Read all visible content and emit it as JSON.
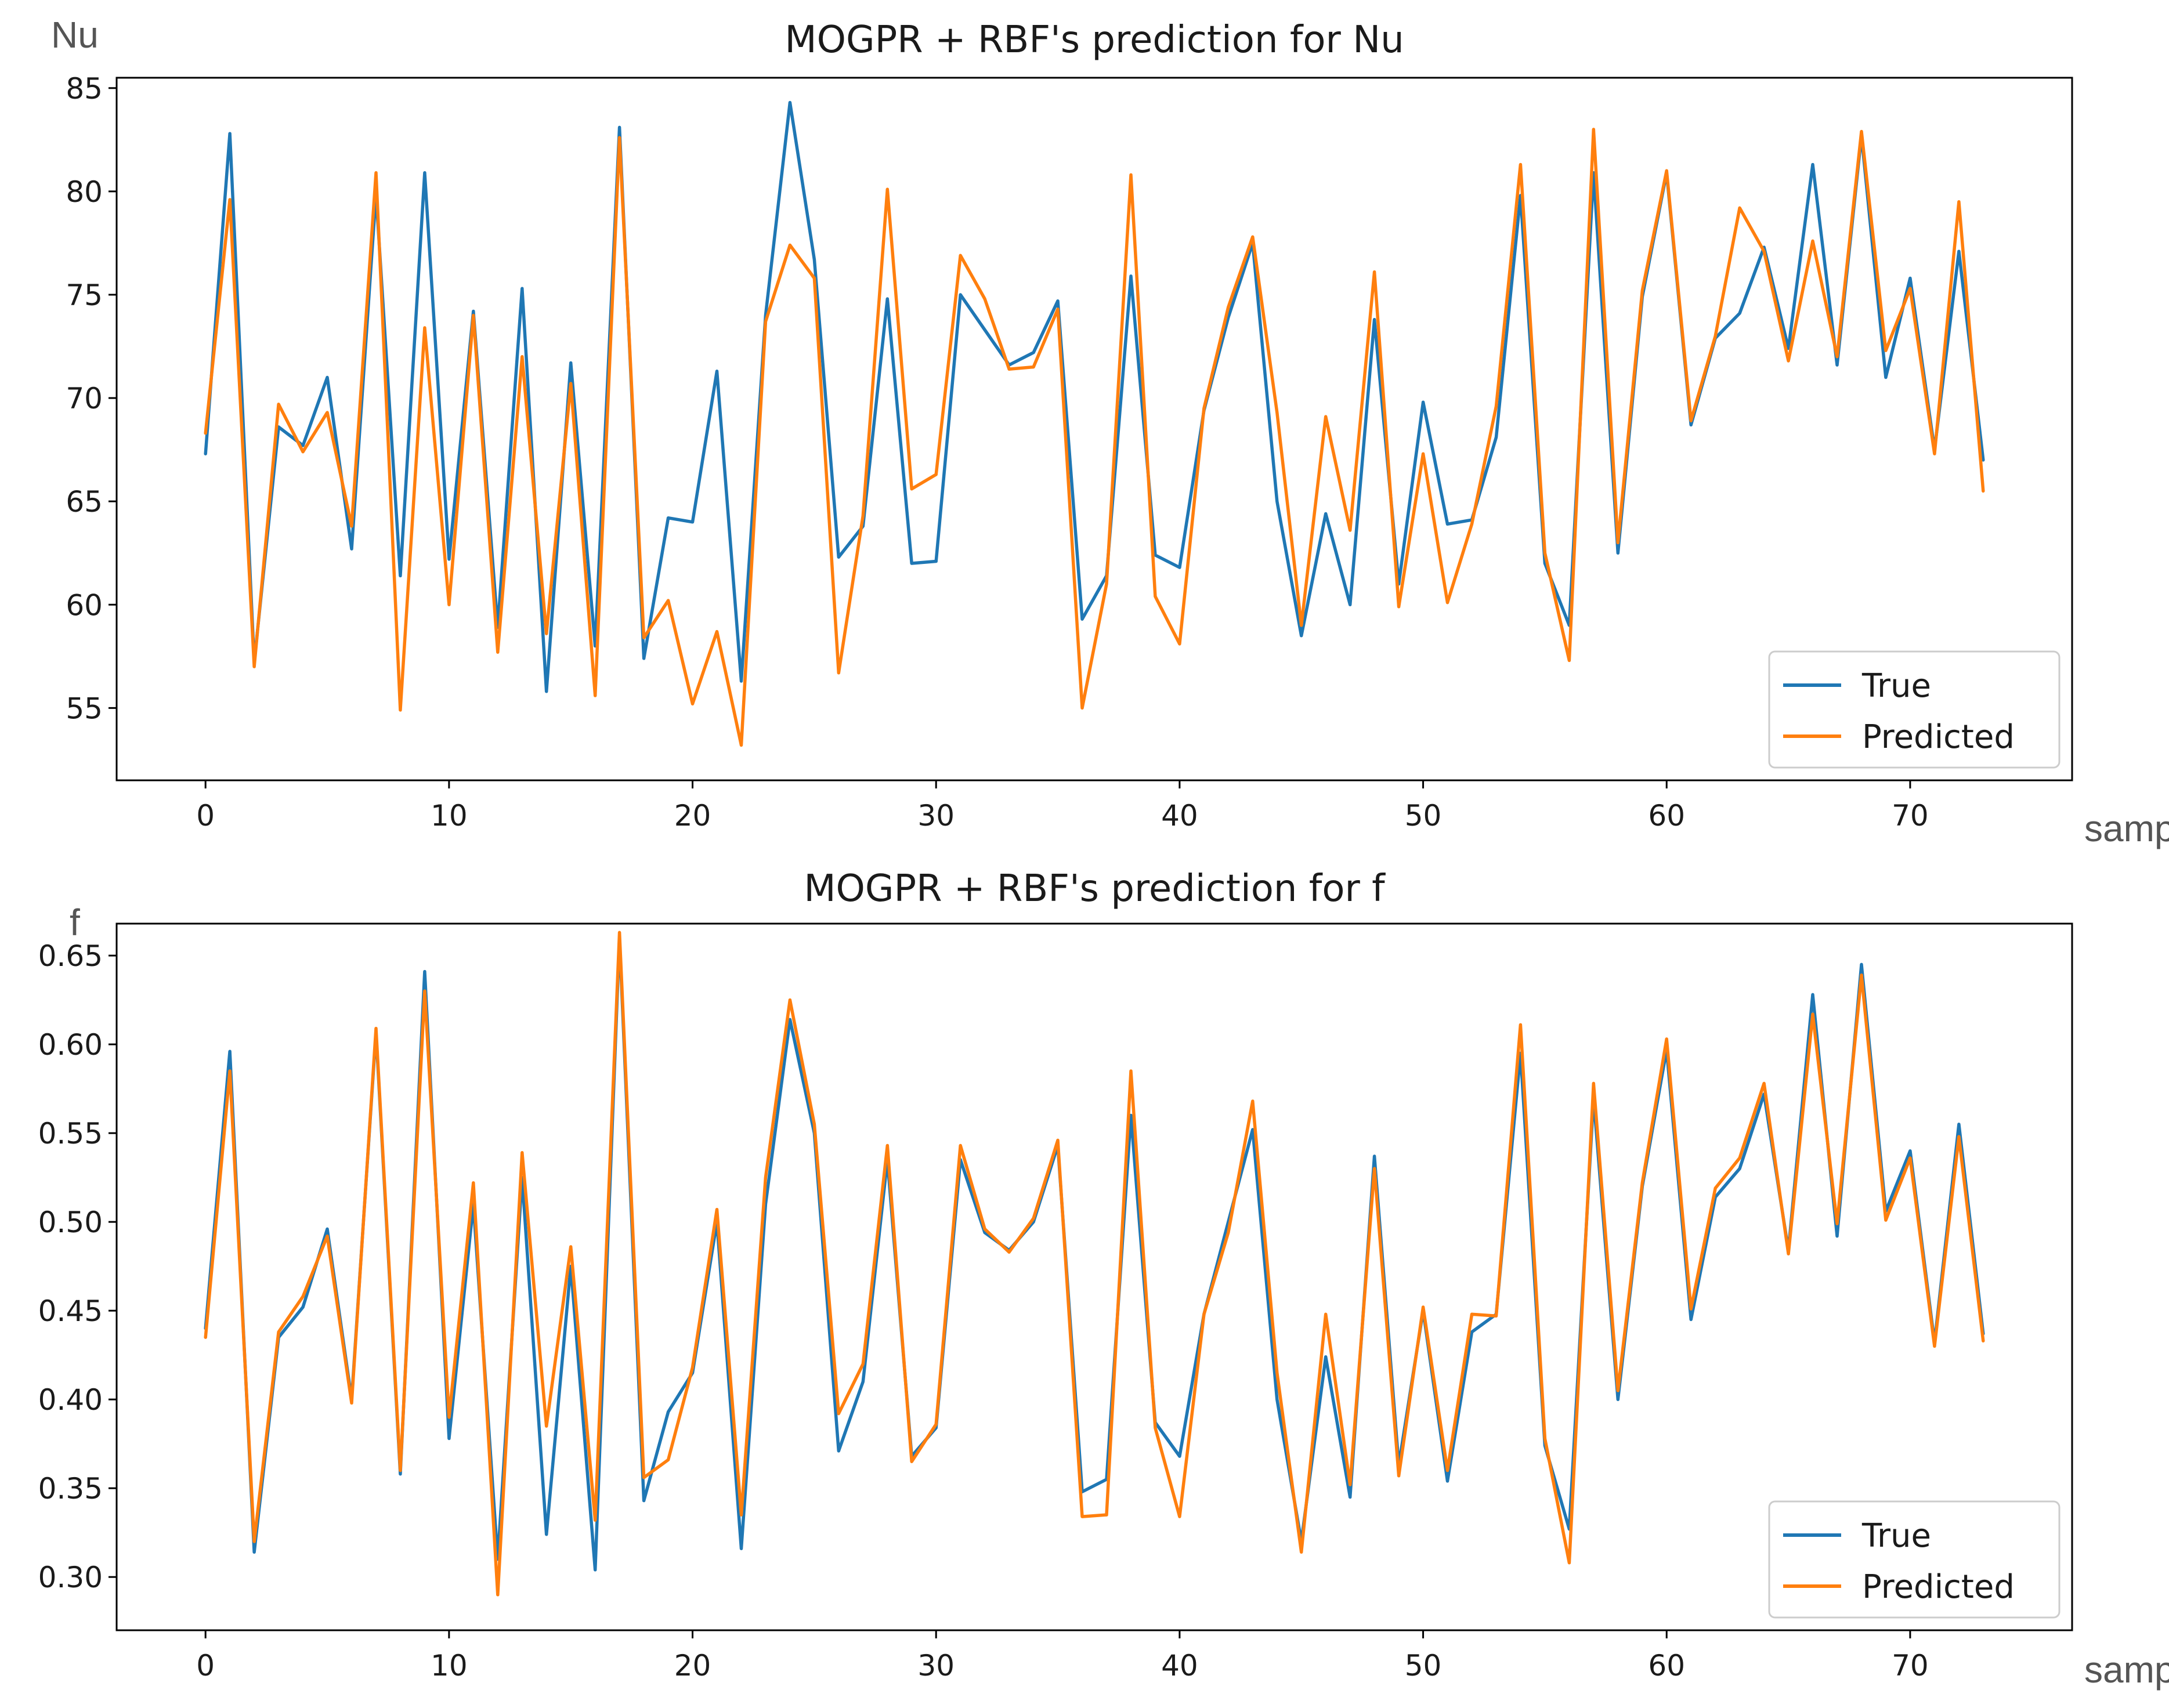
{
  "chart_data": [
    {
      "type": "line",
      "title": "MOGPR + RBF's prediction for Nu",
      "xlabel": "sample",
      "ylabel": "Nu",
      "xlim": [
        -3.65,
        76.65
      ],
      "ylim": [
        51.5,
        85.5
      ],
      "xticks": [
        0,
        10,
        20,
        30,
        40,
        50,
        60,
        70
      ],
      "yticks": [
        55,
        60,
        65,
        70,
        75,
        80,
        85
      ],
      "tick_labels_y": [
        "55",
        "60",
        "65",
        "70",
        "75",
        "80",
        "85"
      ],
      "tick_labels_x": [
        "0",
        "10",
        "20",
        "30",
        "40",
        "50",
        "60",
        "70"
      ],
      "legend": "lower-right",
      "series": [
        {
          "name": "True",
          "color": "#1f77b4",
          "values": [
            67.3,
            82.8,
            57.2,
            68.6,
            67.7,
            71.0,
            62.7,
            79.9,
            61.4,
            80.9,
            62.2,
            74.2,
            58.9,
            75.3,
            55.8,
            71.7,
            58.0,
            83.1,
            57.4,
            64.2,
            64.0,
            71.3,
            56.3,
            74.0,
            84.3,
            76.7,
            62.3,
            63.8,
            74.8,
            62.0,
            62.1,
            75.0,
            73.3,
            71.6,
            72.2,
            74.7,
            59.3,
            61.4,
            75.9,
            62.4,
            61.8,
            69.4,
            73.9,
            77.5,
            65.0,
            58.5,
            64.4,
            60.0,
            73.8,
            61.0,
            69.8,
            63.9,
            64.1,
            68.1,
            79.8,
            62.0,
            59.0,
            80.9,
            62.5,
            74.9,
            80.9,
            68.7,
            72.9,
            74.1,
            77.3,
            72.4,
            81.3,
            71.6,
            82.7,
            71.0,
            75.8,
            67.5,
            77.1,
            67.0
          ]
        },
        {
          "name": "Predicted",
          "color": "#ff7f0e",
          "values": [
            68.3,
            79.6,
            57.0,
            69.7,
            67.4,
            69.3,
            63.8,
            80.9,
            54.9,
            73.4,
            60.0,
            74.0,
            57.7,
            72.0,
            58.6,
            70.7,
            55.6,
            82.6,
            58.4,
            60.2,
            55.2,
            58.7,
            53.2,
            73.7,
            77.4,
            75.8,
            56.7,
            64.3,
            80.1,
            65.6,
            66.3,
            76.9,
            74.8,
            71.4,
            71.5,
            74.3,
            55.0,
            61.0,
            80.8,
            60.4,
            58.1,
            69.5,
            74.4,
            77.8,
            69.3,
            59.0,
            69.1,
            63.6,
            76.1,
            59.9,
            67.3,
            60.1,
            63.9,
            69.6,
            81.3,
            62.5,
            57.3,
            83.0,
            63.0,
            75.2,
            81.0,
            68.9,
            73.0,
            79.2,
            77.1,
            71.8,
            77.6,
            72.0,
            82.9,
            72.3,
            75.3,
            67.3,
            79.5,
            65.5
          ]
        }
      ]
    },
    {
      "type": "line",
      "title": "MOGPR + RBF's prediction for f",
      "xlabel": "sample",
      "ylabel": "f",
      "xlim": [
        -3.65,
        76.65
      ],
      "ylim": [
        0.27,
        0.668
      ],
      "xticks": [
        0,
        10,
        20,
        30,
        40,
        50,
        60,
        70
      ],
      "yticks": [
        0.3,
        0.35,
        0.4,
        0.45,
        0.5,
        0.55,
        0.6,
        0.65
      ],
      "tick_labels_y": [
        "0.30",
        "0.35",
        "0.40",
        "0.45",
        "0.50",
        "0.55",
        "0.60",
        "0.65"
      ],
      "tick_labels_x": [
        "0",
        "10",
        "20",
        "30",
        "40",
        "50",
        "60",
        "70"
      ],
      "legend": "lower-right",
      "series": [
        {
          "name": "True",
          "color": "#1f77b4",
          "values": [
            0.44,
            0.596,
            0.314,
            0.435,
            0.452,
            0.496,
            0.4,
            0.607,
            0.358,
            0.641,
            0.378,
            0.51,
            0.31,
            0.525,
            0.324,
            0.475,
            0.304,
            0.66,
            0.343,
            0.393,
            0.415,
            0.5,
            0.316,
            0.51,
            0.614,
            0.55,
            0.371,
            0.41,
            0.535,
            0.368,
            0.384,
            0.535,
            0.494,
            0.484,
            0.5,
            0.543,
            0.348,
            0.355,
            0.56,
            0.387,
            0.368,
            0.448,
            0.5,
            0.552,
            0.4,
            0.32,
            0.424,
            0.345,
            0.537,
            0.363,
            0.45,
            0.354,
            0.438,
            0.448,
            0.595,
            0.374,
            0.327,
            0.57,
            0.4,
            0.52,
            0.597,
            0.445,
            0.514,
            0.53,
            0.572,
            0.484,
            0.628,
            0.492,
            0.645,
            0.506,
            0.54,
            0.432,
            0.555,
            0.437
          ]
        },
        {
          "name": "Predicted",
          "color": "#ff7f0e",
          "values": [
            0.435,
            0.585,
            0.32,
            0.438,
            0.458,
            0.492,
            0.398,
            0.609,
            0.36,
            0.63,
            0.39,
            0.522,
            0.29,
            0.539,
            0.385,
            0.486,
            0.332,
            0.663,
            0.356,
            0.366,
            0.418,
            0.507,
            0.335,
            0.525,
            0.625,
            0.555,
            0.392,
            0.42,
            0.543,
            0.365,
            0.386,
            0.543,
            0.496,
            0.483,
            0.502,
            0.546,
            0.334,
            0.335,
            0.585,
            0.384,
            0.334,
            0.448,
            0.494,
            0.568,
            0.415,
            0.314,
            0.448,
            0.352,
            0.53,
            0.357,
            0.452,
            0.36,
            0.448,
            0.447,
            0.611,
            0.378,
            0.308,
            0.578,
            0.405,
            0.522,
            0.603,
            0.451,
            0.519,
            0.536,
            0.578,
            0.482,
            0.617,
            0.499,
            0.639,
            0.501,
            0.536,
            0.43,
            0.548,
            0.433
          ]
        }
      ]
    }
  ]
}
